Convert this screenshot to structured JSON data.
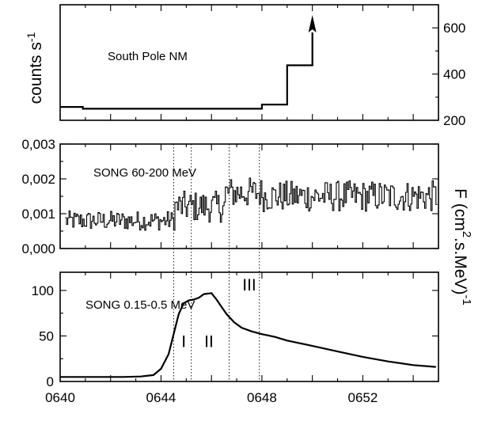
{
  "chart_data": [
    {
      "type": "line",
      "title": "South Pole NM",
      "ylabel": "counts s",
      "ylabel_exp": "-1",
      "ylim": [
        200,
        700
      ],
      "yticks": [
        "200",
        "400",
        "600"
      ],
      "yaxis_side": "right",
      "xlim": [
        640,
        655
      ],
      "series": [
        {
          "x": [
            640,
            640.9,
            640.9,
            648.0,
            648.0,
            649.0,
            649.0,
            650.0,
            650.0
          ],
          "y": [
            258,
            258,
            250,
            250,
            268,
            268,
            438,
            438,
            580
          ]
        }
      ],
      "annotation": "arrow-up"
    },
    {
      "type": "line",
      "title": "SONG 60-200 MeV",
      "ylim": [
        0.0,
        0.003
      ],
      "yticks": [
        "0,000",
        "0,001",
        "0,002",
        "0,003"
      ],
      "ylabel_right": {
        "F": "F",
        "paren": "(cm",
        "exp2": "2",
        "smev": ".s.MeV)",
        "expm1": "-1"
      },
      "xlim": [
        640,
        655
      ],
      "series": [
        {
          "model": "noisy-step",
          "x_start": 640.2,
          "x_end": 654.9,
          "step": 0.05,
          "segments": [
            {
              "x_from": 640.2,
              "x_to": 644.5,
              "mean": 0.0008,
              "noise": 0.00028
            },
            {
              "x_from": 644.5,
              "x_to": 646.5,
              "mean": 0.0012,
              "noise": 0.00045
            },
            {
              "x_from": 646.5,
              "x_to": 648.0,
              "mean": 0.0016,
              "noise": 0.00045
            },
            {
              "x_from": 648.0,
              "x_to": 654.9,
              "mean": 0.0015,
              "noise": 0.00045
            }
          ]
        }
      ]
    },
    {
      "type": "line",
      "title": "SONG 0.15-0.5 MeV",
      "ylim": [
        0,
        120
      ],
      "yticks": [
        "0",
        "50",
        "100"
      ],
      "xlim": [
        640,
        655
      ],
      "xticks": [
        "0640",
        "0644",
        "0648",
        "0652"
      ],
      "xtick_values": [
        640,
        644,
        648,
        652
      ],
      "phase_labels": [
        "I",
        "II",
        "III"
      ],
      "phase_label_x": [
        644.9,
        645.9,
        647.5
      ],
      "phase_label_y": [
        38,
        38,
        100
      ],
      "phase_boundaries": [
        644.5,
        645.2,
        646.7,
        647.9
      ],
      "series": [
        {
          "x": [
            640.0,
            640.5,
            641.5,
            642.5,
            643.2,
            643.7,
            644.0,
            644.3,
            644.5,
            644.7,
            644.9,
            645.1,
            645.3,
            645.5,
            645.7,
            646.0,
            646.2,
            646.4,
            646.6,
            646.9,
            647.2,
            647.6,
            648.0,
            648.5,
            649.0,
            650.0,
            651.0,
            652.0,
            653.0,
            654.0,
            654.9
          ],
          "y": [
            5,
            5,
            5,
            5,
            5.5,
            7,
            14,
            30,
            52,
            74,
            86,
            89,
            90,
            92,
            96,
            97,
            90,
            82,
            74,
            65,
            59,
            55,
            52,
            49,
            45,
            39,
            33,
            27,
            22,
            18,
            16
          ]
        }
      ]
    }
  ]
}
